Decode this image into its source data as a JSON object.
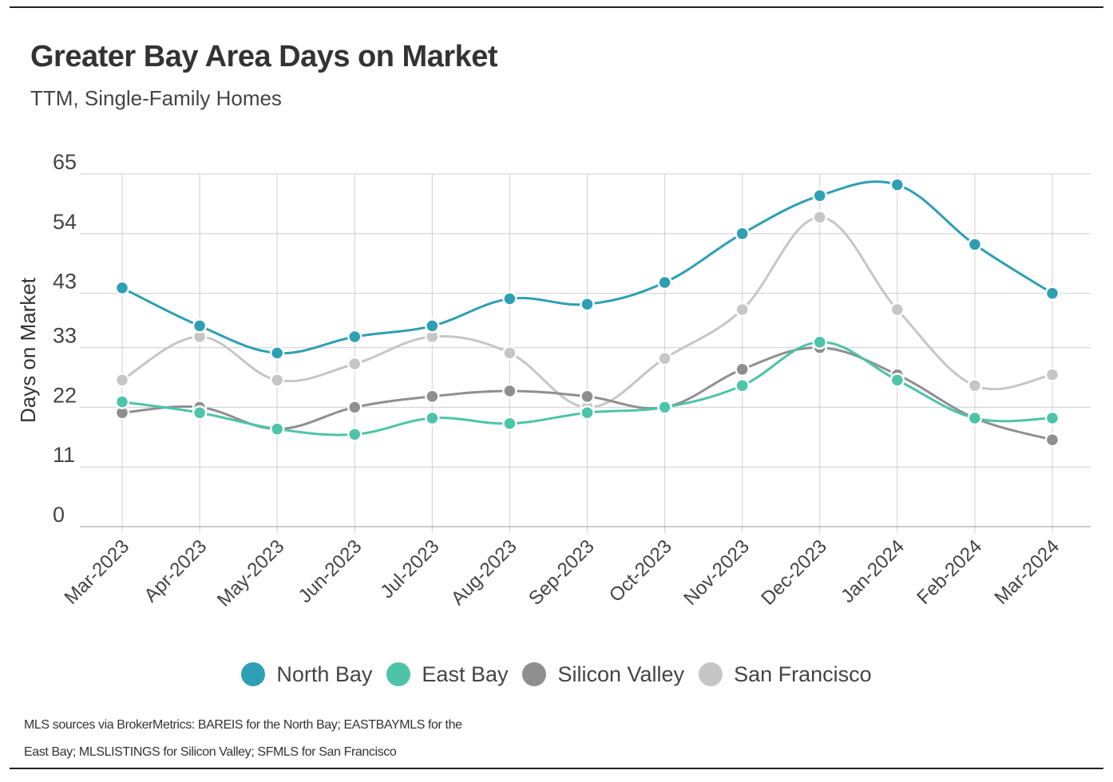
{
  "chart_data": {
    "type": "line",
    "title": "Greater Bay Area Days on Market",
    "subtitle": "TTM, Single-Family Homes",
    "ylabel": "Days on Market",
    "xlabel": "",
    "ylim": [
      0,
      65
    ],
    "yticks": [
      0,
      11,
      22,
      33,
      43,
      54,
      65
    ],
    "grid": true,
    "categories": [
      "Mar-2023",
      "Apr-2023",
      "May-2023",
      "Jun-2023",
      "Jul-2023",
      "Aug-2023",
      "Sep-2023",
      "Oct-2023",
      "Nov-2023",
      "Dec-2023",
      "Jan-2024",
      "Feb-2024",
      "Mar-2024"
    ],
    "series": [
      {
        "name": "North Bay",
        "color": "#2e9fb5",
        "values": [
          44,
          37,
          32,
          35,
          37,
          42,
          41,
          45,
          54,
          61,
          63,
          52,
          43
        ]
      },
      {
        "name": "East Bay",
        "color": "#4dc4a8",
        "values": [
          23,
          21,
          18,
          17,
          20,
          19,
          21,
          22,
          26,
          34,
          27,
          20,
          20
        ]
      },
      {
        "name": "Silicon Valley",
        "color": "#8f8f8f",
        "values": [
          21,
          22,
          18,
          22,
          24,
          25,
          24,
          22,
          29,
          33,
          28,
          20,
          16
        ]
      },
      {
        "name": "San Francisco",
        "color": "#c6c6c6",
        "values": [
          27,
          35,
          27,
          30,
          35,
          32,
          22,
          31,
          40,
          57,
          40,
          26,
          28
        ]
      }
    ],
    "legend_position": "bottom",
    "source_note": "MLS sources via BrokerMetrics: BAREIS for the North Bay; EASTBAYMLS for the East Bay; MLSLISTINGS for Silicon Valley; SFMLS for San Francisco"
  }
}
